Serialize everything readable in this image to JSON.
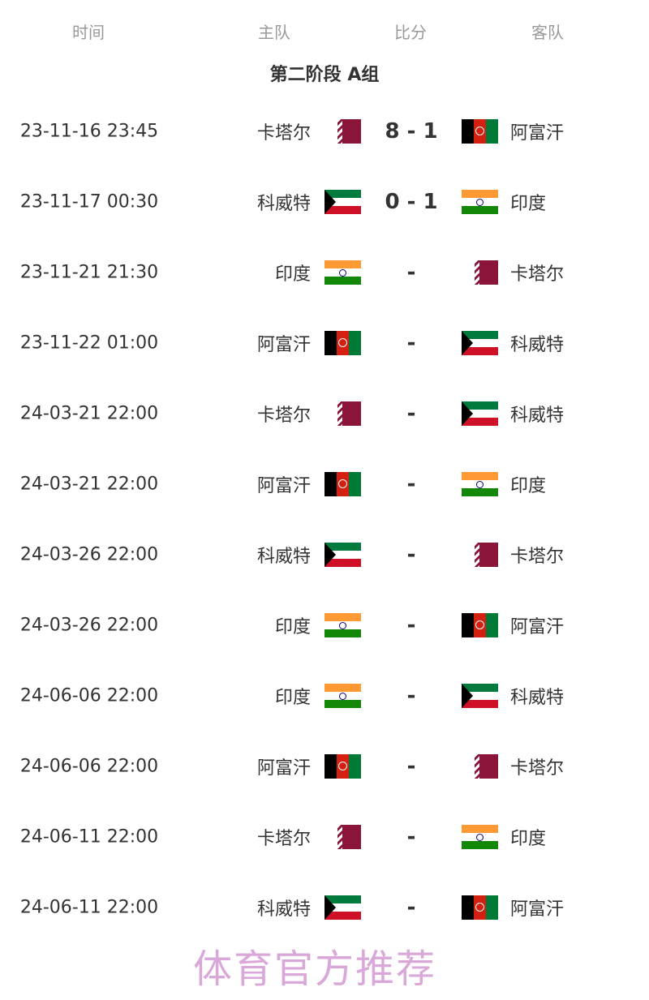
{
  "header": {
    "time": "时间",
    "home": "主队",
    "score": "比分",
    "away": "客队"
  },
  "group_title": "第二阶段 A组",
  "flags": {
    "卡塔尔": "qatar",
    "阿富汗": "afg",
    "科威特": "kuw",
    "印度": "ind"
  },
  "matches": [
    {
      "time": "23-11-16 23:45",
      "home": "卡塔尔",
      "score": "8 - 1",
      "away": "阿富汗"
    },
    {
      "time": "23-11-17 00:30",
      "home": "科威特",
      "score": "0 - 1",
      "away": "印度"
    },
    {
      "time": "23-11-21 21:30",
      "home": "印度",
      "score": "-",
      "away": "卡塔尔"
    },
    {
      "time": "23-11-22 01:00",
      "home": "阿富汗",
      "score": "-",
      "away": "科威特"
    },
    {
      "time": "24-03-21 22:00",
      "home": "卡塔尔",
      "score": "-",
      "away": "科威特"
    },
    {
      "time": "24-03-21 22:00",
      "home": "阿富汗",
      "score": "-",
      "away": "印度"
    },
    {
      "time": "24-03-26 22:00",
      "home": "科威特",
      "score": "-",
      "away": "卡塔尔"
    },
    {
      "time": "24-03-26 22:00",
      "home": "印度",
      "score": "-",
      "away": "阿富汗"
    },
    {
      "time": "24-06-06 22:00",
      "home": "印度",
      "score": "-",
      "away": "科威特"
    },
    {
      "time": "24-06-06 22:00",
      "home": "阿富汗",
      "score": "-",
      "away": "卡塔尔"
    },
    {
      "time": "24-06-11 22:00",
      "home": "卡塔尔",
      "score": "-",
      "away": "印度"
    },
    {
      "time": "24-06-11 22:00",
      "home": "科威特",
      "score": "-",
      "away": "阿富汗"
    }
  ],
  "watermark": "体育官方推荐"
}
